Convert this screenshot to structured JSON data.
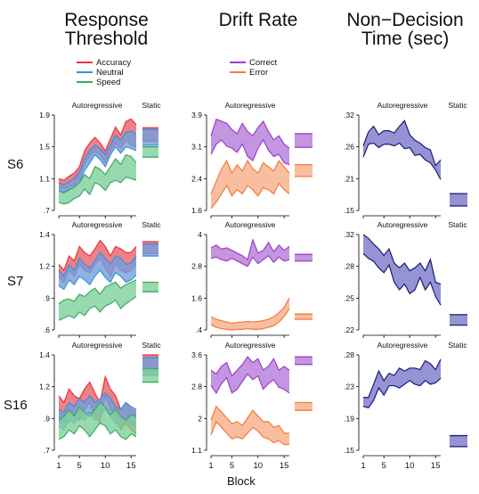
{
  "titles": {
    "col1": [
      "Response",
      "Threshold"
    ],
    "col2": [
      "Drift Rate"
    ],
    "col3": [
      "Non−Decision",
      "Time (sec)"
    ]
  },
  "xlabel": "Block",
  "rows": [
    "S6",
    "S7",
    "S16"
  ],
  "sublabels": {
    "auto": "Autoregressive",
    "static": "Static"
  },
  "legend1": [
    {
      "name": "Accuracy",
      "color": "#e8373a"
    },
    {
      "name": "Neutral",
      "color": "#3a8fd6"
    },
    {
      "name": "Speed",
      "color": "#3aaa66"
    }
  ],
  "legend2": [
    {
      "name": "Correct",
      "color": "#9b3fc9"
    },
    {
      "name": "Error",
      "color": "#f07a3a"
    }
  ],
  "colors": {
    "acc_fill": "#e8606a",
    "acc_line": "#e8373a",
    "neu_fill": "#6f9fe0",
    "neu_line": "#3a8fd6",
    "spd_fill": "#7fcf9a",
    "spd_line": "#3aaa66",
    "cor_fill": "#b57ad8",
    "cor_line": "#9b3fc9",
    "err_fill": "#f8ae88",
    "err_line": "#f07a3a",
    "ndt_fill": "#7a78c8",
    "ndt_line": "#1a1a7a"
  },
  "x_ticks": [
    "1",
    "5",
    "10",
    "15"
  ],
  "chart_data": [
    {
      "id": "r1c1",
      "type": "area",
      "ylim": [
        0.7,
        1.9
      ],
      "yticks": [
        ".7",
        "1.1",
        "1.5",
        "1.9"
      ],
      "bands": [
        {
          "c": "acc",
          "lo": [
            0.98,
            0.97,
            1.0,
            1.02,
            1.1,
            1.28,
            1.38,
            1.44,
            1.4,
            1.3,
            1.45,
            1.55,
            1.48,
            1.58,
            1.52,
            1.5
          ],
          "hi": [
            1.1,
            1.08,
            1.13,
            1.17,
            1.25,
            1.45,
            1.55,
            1.62,
            1.55,
            1.45,
            1.6,
            1.75,
            1.65,
            1.82,
            1.85,
            1.78
          ]
        },
        {
          "c": "neu",
          "lo": [
            0.95,
            0.93,
            0.97,
            0.98,
            1.05,
            1.2,
            1.3,
            1.4,
            1.34,
            1.25,
            1.4,
            1.5,
            1.42,
            1.5,
            1.48,
            1.45
          ],
          "hi": [
            1.05,
            1.02,
            1.06,
            1.1,
            1.18,
            1.35,
            1.45,
            1.52,
            1.48,
            1.4,
            1.52,
            1.65,
            1.58,
            1.68,
            1.7,
            1.66
          ]
        },
        {
          "c": "spd",
          "lo": [
            0.8,
            0.78,
            0.8,
            0.85,
            0.88,
            0.97,
            0.9,
            1.05,
            1.02,
            0.95,
            1.05,
            1.08,
            1.05,
            1.12,
            1.1,
            1.08
          ],
          "hi": [
            0.95,
            0.92,
            0.96,
            1.0,
            1.05,
            1.15,
            1.1,
            1.25,
            1.22,
            1.15,
            1.25,
            1.35,
            1.28,
            1.4,
            1.38,
            1.3
          ]
        }
      ],
      "static": [
        {
          "c": "acc",
          "lo": 1.57,
          "hi": 1.74
        },
        {
          "c": "neu",
          "lo": 1.52,
          "hi": 1.72
        },
        {
          "c": "spd",
          "lo": 1.37,
          "hi": 1.5
        }
      ]
    },
    {
      "id": "r1c2",
      "type": "area",
      "ylim": [
        1.6,
        3.9
      ],
      "yticks": [
        "1.6",
        "2.4",
        "3.1",
        "3.9"
      ],
      "bands": [
        {
          "c": "cor",
          "lo": [
            2.95,
            3.2,
            3.3,
            3.15,
            3.1,
            3.0,
            3.2,
            2.9,
            2.8,
            3.1,
            3.3,
            3.05,
            2.9,
            2.95,
            2.75,
            2.7
          ],
          "hi": [
            3.4,
            3.8,
            3.75,
            3.7,
            3.55,
            3.45,
            3.7,
            3.5,
            3.4,
            3.6,
            3.75,
            3.5,
            3.3,
            3.4,
            3.2,
            3.1
          ]
        },
        {
          "c": "err",
          "lo": [
            1.65,
            1.8,
            2.0,
            2.2,
            1.95,
            2.1,
            2.0,
            2.2,
            2.1,
            1.95,
            2.15,
            2.1,
            2.0,
            2.25,
            2.1,
            2.0
          ],
          "hi": [
            2.0,
            2.3,
            2.6,
            2.8,
            2.5,
            2.7,
            2.55,
            2.8,
            2.6,
            2.5,
            2.75,
            2.65,
            2.55,
            2.8,
            2.65,
            2.5
          ]
        }
      ],
      "static": [
        {
          "c": "cor",
          "lo": 3.12,
          "hi": 3.45
        },
        {
          "c": "err",
          "lo": 2.42,
          "hi": 2.7
        }
      ]
    },
    {
      "id": "r1c3",
      "type": "area",
      "ylim": [
        0.15,
        0.32
      ],
      "yticks": [
        ".15",
        ".21",
        ".26",
        ".32"
      ],
      "bands": [
        {
          "c": "ndt",
          "lo": [
            0.245,
            0.268,
            0.27,
            0.262,
            0.268,
            0.268,
            0.265,
            0.27,
            0.26,
            0.262,
            0.248,
            0.25,
            0.24,
            0.235,
            0.222,
            0.205
          ],
          "hi": [
            0.265,
            0.29,
            0.3,
            0.285,
            0.292,
            0.292,
            0.288,
            0.3,
            0.31,
            0.285,
            0.275,
            0.27,
            0.262,
            0.258,
            0.23,
            0.24
          ]
        }
      ],
      "static": [
        {
          "c": "ndt",
          "lo": 0.158,
          "hi": 0.18
        }
      ]
    },
    {
      "id": "r2c1",
      "type": "area",
      "ylim": [
        0.6,
        1.4
      ],
      "yticks": [
        ".6",
        ".9",
        "1.2",
        "1.4"
      ],
      "bands": [
        {
          "c": "acc",
          "lo": [
            1.05,
            1.0,
            1.1,
            1.05,
            1.15,
            1.1,
            1.08,
            1.15,
            1.2,
            1.12,
            1.05,
            1.15,
            1.1,
            1.08,
            1.1,
            1.15
          ],
          "hi": [
            1.15,
            1.1,
            1.22,
            1.18,
            1.3,
            1.25,
            1.22,
            1.28,
            1.35,
            1.3,
            1.22,
            1.3,
            1.28,
            1.25,
            1.25,
            1.3
          ]
        },
        {
          "c": "neu",
          "lo": [
            0.97,
            0.94,
            1.02,
            0.98,
            1.05,
            1.02,
            0.98,
            1.05,
            1.1,
            1.04,
            1.0,
            1.08,
            1.05,
            1.0,
            1.02,
            1.06
          ],
          "hi": [
            1.1,
            1.05,
            1.15,
            1.1,
            1.2,
            1.15,
            1.12,
            1.18,
            1.25,
            1.2,
            1.15,
            1.22,
            1.2,
            1.15,
            1.16,
            1.22
          ]
        },
        {
          "c": "spd",
          "lo": [
            0.68,
            0.7,
            0.72,
            0.7,
            0.75,
            0.72,
            0.78,
            0.8,
            0.75,
            0.8,
            0.82,
            0.85,
            0.78,
            0.82,
            0.85,
            0.88
          ],
          "hi": [
            0.82,
            0.85,
            0.86,
            0.84,
            0.9,
            0.88,
            0.92,
            0.95,
            0.9,
            0.96,
            0.98,
            1.0,
            0.95,
            0.98,
            1.0,
            1.02
          ]
        }
      ],
      "static": [
        {
          "c": "acc",
          "lo": 1.24,
          "hi": 1.34
        },
        {
          "c": "neu",
          "lo": 1.22,
          "hi": 1.32
        },
        {
          "c": "spd",
          "lo": 0.92,
          "hi": 1.0
        }
      ]
    },
    {
      "id": "r2c2",
      "type": "area",
      "ylim": [
        0.4,
        4.0
      ],
      "yticks": [
        ".4",
        "1.6",
        "2.8",
        "4"
      ],
      "bands": [
        {
          "c": "cor",
          "lo": [
            3.1,
            3.15,
            3.05,
            3.0,
            3.1,
            3.0,
            2.9,
            2.8,
            3.15,
            2.9,
            3.05,
            3.2,
            2.95,
            3.15,
            3.0,
            3.05
          ],
          "hi": [
            3.5,
            3.6,
            3.45,
            3.5,
            3.4,
            3.3,
            3.2,
            3.05,
            3.8,
            3.3,
            3.4,
            3.7,
            3.35,
            3.6,
            3.4,
            3.55
          ]
        },
        {
          "c": "err",
          "lo": [
            0.6,
            0.5,
            0.45,
            0.42,
            0.4,
            0.42,
            0.42,
            0.45,
            0.42,
            0.42,
            0.45,
            0.5,
            0.55,
            0.7,
            0.9,
            1.2
          ],
          "hi": [
            0.9,
            0.8,
            0.75,
            0.7,
            0.65,
            0.68,
            0.7,
            0.72,
            0.7,
            0.72,
            0.75,
            0.8,
            0.9,
            1.05,
            1.25,
            1.6
          ]
        }
      ],
      "static": [
        {
          "c": "cor",
          "lo": 3.0,
          "hi": 3.25
        },
        {
          "c": "err",
          "lo": 0.8,
          "hi": 1.0
        }
      ]
    },
    {
      "id": "r2c3",
      "type": "area",
      "ylim": [
        0.22,
        0.32
      ],
      "yticks": [
        ".22",
        ".25",
        ".28",
        ".32"
      ],
      "bands": [
        {
          "c": "ndt",
          "lo": [
            0.3,
            0.295,
            0.292,
            0.285,
            0.28,
            0.288,
            0.27,
            0.262,
            0.268,
            0.258,
            0.262,
            0.275,
            0.262,
            0.27,
            0.255,
            0.246
          ],
          "hi": [
            0.32,
            0.316,
            0.31,
            0.305,
            0.298,
            0.305,
            0.29,
            0.285,
            0.29,
            0.282,
            0.285,
            0.29,
            0.282,
            0.294,
            0.27,
            0.268
          ]
        }
      ],
      "static": [
        {
          "c": "ndt",
          "lo": 0.225,
          "hi": 0.236
        }
      ]
    },
    {
      "id": "r3c1",
      "type": "area",
      "ylim": [
        0.7,
        1.4
      ],
      "yticks": [
        ".7",
        ".9",
        "1.2",
        "1.4"
      ],
      "bands": [
        {
          "c": "acc",
          "lo": [
            0.95,
            0.9,
            1.0,
            0.95,
            0.92,
            1.0,
            1.05,
            0.95,
            0.9,
            1.1,
            1.0,
            0.95,
            0.85,
            0.9,
            0.85,
            0.82
          ],
          "hi": [
            1.1,
            1.05,
            1.15,
            1.1,
            1.08,
            1.15,
            1.2,
            1.12,
            1.05,
            1.24,
            1.15,
            1.1,
            1.0,
            1.05,
            1.0,
            0.98
          ]
        },
        {
          "c": "neu",
          "lo": [
            0.88,
            0.85,
            0.92,
            0.9,
            0.95,
            0.92,
            0.98,
            0.92,
            0.95,
            1.0,
            0.95,
            0.9,
            0.88,
            0.92,
            0.9,
            0.88
          ],
          "hi": [
            1.0,
            0.98,
            1.05,
            1.02,
            1.08,
            1.05,
            1.1,
            1.05,
            1.08,
            1.12,
            1.08,
            1.02,
            1.0,
            1.05,
            1.02,
            1.0
          ]
        },
        {
          "c": "spd",
          "lo": [
            0.78,
            0.8,
            0.85,
            0.82,
            0.88,
            0.85,
            0.8,
            0.85,
            0.9,
            0.88,
            0.82,
            0.85,
            0.8,
            0.78,
            0.82,
            0.8
          ],
          "hi": [
            0.92,
            0.95,
            1.0,
            0.95,
            1.02,
            0.98,
            0.95,
            1.0,
            1.05,
            1.02,
            0.96,
            1.0,
            0.95,
            0.92,
            0.96,
            0.95
          ]
        }
      ],
      "static": [
        {
          "c": "acc",
          "lo": 1.28,
          "hi": 1.4
        },
        {
          "c": "neu",
          "lo": 1.25,
          "hi": 1.38
        },
        {
          "c": "spd",
          "lo": 1.2,
          "hi": 1.3
        }
      ]
    },
    {
      "id": "r3c2",
      "type": "area",
      "ylim": [
        1.1,
        3.6
      ],
      "yticks": [
        "1.1",
        "2",
        "2.8",
        "3.6"
      ],
      "bands": [
        {
          "c": "cor",
          "lo": [
            2.8,
            2.6,
            2.85,
            3.0,
            2.6,
            2.7,
            2.9,
            3.1,
            2.95,
            3.05,
            2.7,
            2.85,
            2.95,
            2.75,
            2.7,
            2.6
          ],
          "hi": [
            3.2,
            3.1,
            3.3,
            3.4,
            3.05,
            3.2,
            3.35,
            3.55,
            3.4,
            3.5,
            3.2,
            3.3,
            3.5,
            3.2,
            3.3,
            3.2
          ]
        },
        {
          "c": "err",
          "lo": [
            1.5,
            1.85,
            1.7,
            1.55,
            1.4,
            1.45,
            1.4,
            1.55,
            1.7,
            1.6,
            1.45,
            1.4,
            1.3,
            1.35,
            1.25,
            1.25
          ],
          "hi": [
            1.9,
            2.25,
            2.1,
            1.95,
            1.8,
            1.85,
            1.75,
            1.95,
            2.15,
            2.0,
            1.85,
            1.85,
            1.7,
            1.75,
            1.55,
            1.55
          ]
        }
      ],
      "static": [
        {
          "c": "cor",
          "lo": 3.35,
          "hi": 3.55
        },
        {
          "c": "err",
          "lo": 2.15,
          "hi": 2.35
        }
      ]
    },
    {
      "id": "r3c3",
      "type": "area",
      "ylim": [
        0.15,
        0.28
      ],
      "yticks": [
        ".15",
        ".19",
        ".23",
        ".28"
      ],
      "bands": [
        {
          "c": "ndt",
          "lo": [
            0.21,
            0.208,
            0.218,
            0.235,
            0.225,
            0.238,
            0.238,
            0.235,
            0.24,
            0.245,
            0.24,
            0.238,
            0.245,
            0.24,
            0.242,
            0.248
          ],
          "hi": [
            0.222,
            0.222,
            0.24,
            0.258,
            0.245,
            0.255,
            0.252,
            0.262,
            0.258,
            0.262,
            0.262,
            0.26,
            0.272,
            0.268,
            0.26,
            0.274
          ]
        }
      ],
      "static": [
        {
          "c": "ndt",
          "lo": 0.155,
          "hi": 0.17
        }
      ]
    }
  ]
}
